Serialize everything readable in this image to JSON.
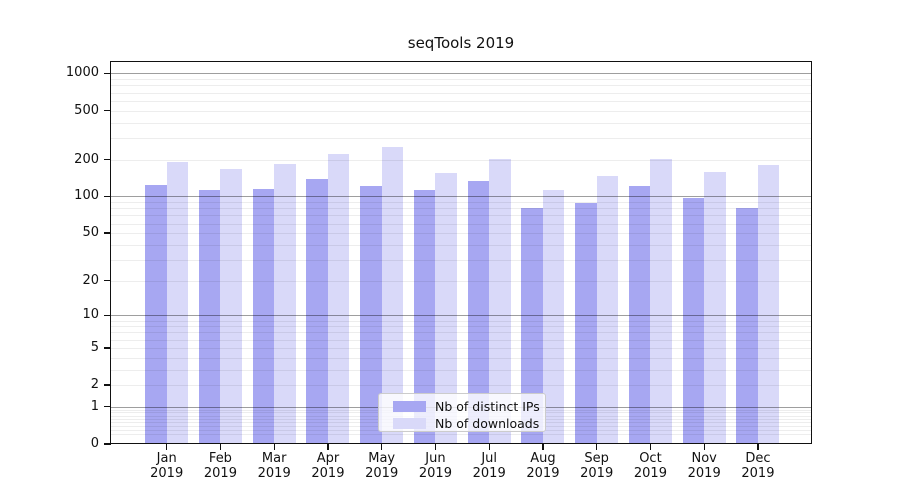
{
  "title": "seqTools 2019",
  "colors": {
    "series_distinct_ips": "#a7a7f2",
    "series_downloads": "#d9d9f9",
    "grid_minor": "rgba(0,0,0,0.07)",
    "grid_major": "rgba(0,0,0,0.38)",
    "spine": "#111111",
    "legend_border": "#cccccc",
    "legend_background": "rgba(255,255,255,0.8)"
  },
  "chart_data": {
    "type": "bar",
    "title": "seqTools 2019",
    "y_scale": "log1p",
    "ylim": [
      0,
      1300
    ],
    "grid": true,
    "legend_position": "lower center",
    "categories": [
      {
        "month": "Jan",
        "year": "2019"
      },
      {
        "month": "Feb",
        "year": "2019"
      },
      {
        "month": "Mar",
        "year": "2019"
      },
      {
        "month": "Apr",
        "year": "2019"
      },
      {
        "month": "May",
        "year": "2019"
      },
      {
        "month": "Jun",
        "year": "2019"
      },
      {
        "month": "Jul",
        "year": "2019"
      },
      {
        "month": "Aug",
        "year": "2019"
      },
      {
        "month": "Sep",
        "year": "2019"
      },
      {
        "month": "Oct",
        "year": "2019"
      },
      {
        "month": "Nov",
        "year": "2019"
      },
      {
        "month": "Dec",
        "year": "2019"
      }
    ],
    "series": [
      {
        "name": "Nb of distinct IPs",
        "color": "#a7a7f2",
        "values": [
          124,
          113,
          116,
          140,
          121,
          113,
          134,
          81,
          88,
          122,
          98,
          81
        ]
      },
      {
        "name": "Nb of downloads",
        "color": "#d9d9f9",
        "values": [
          191,
          167,
          183,
          223,
          254,
          155,
          202,
          113,
          147,
          201,
          158,
          181
        ]
      }
    ],
    "yticks": [
      0,
      1,
      2,
      5,
      10,
      20,
      50,
      100,
      200,
      500,
      1000
    ],
    "major_grid_values": [
      1,
      10,
      100,
      1000
    ],
    "minor_grid_values": [
      0.2,
      0.3,
      0.4,
      0.5,
      0.6,
      0.7,
      0.8,
      0.9,
      2,
      3,
      4,
      5,
      6,
      7,
      8,
      9,
      20,
      30,
      40,
      50,
      60,
      70,
      80,
      90,
      200,
      300,
      400,
      500,
      600,
      700,
      800,
      900
    ]
  }
}
